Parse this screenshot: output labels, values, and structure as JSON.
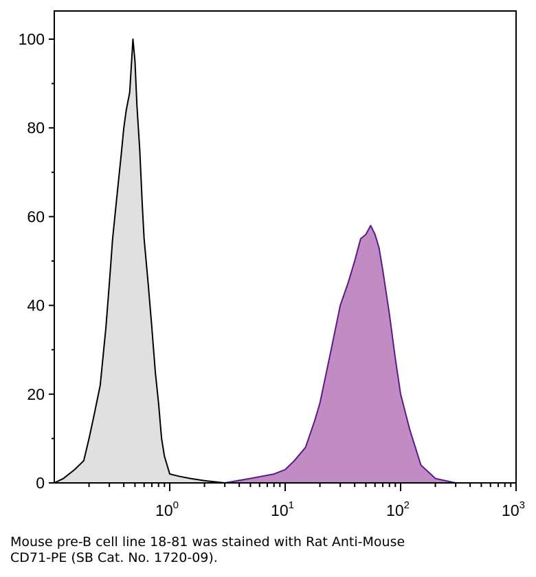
{
  "chart_data": {
    "type": "area",
    "title": "",
    "xlabel": "",
    "ylabel": "",
    "x_scale": "log",
    "xlim": [
      0.1,
      1000
    ],
    "ylim": [
      0,
      105
    ],
    "x_ticks": [
      {
        "base": "10",
        "exp": "0"
      },
      {
        "base": "10",
        "exp": "1"
      },
      {
        "base": "10",
        "exp": "2"
      },
      {
        "base": "10",
        "exp": "3"
      }
    ],
    "y_ticks": [
      "0",
      "20",
      "40",
      "60",
      "80",
      "100"
    ],
    "series": [
      {
        "fill": "#e0e0e0",
        "stroke": "#000000",
        "x": [
          0.1,
          0.12,
          0.15,
          0.18,
          0.2,
          0.22,
          0.25,
          0.28,
          0.3,
          0.32,
          0.35,
          0.38,
          0.4,
          0.42,
          0.45,
          0.48,
          0.5,
          0.52,
          0.55,
          0.58,
          0.6,
          0.65,
          0.7,
          0.75,
          0.8,
          0.85,
          0.9,
          1.0,
          1.2,
          1.5,
          2.0,
          3.0
        ],
        "y": [
          0,
          1,
          3,
          5,
          10,
          15,
          22,
          35,
          45,
          55,
          65,
          74,
          80,
          84,
          88,
          100,
          95,
          85,
          75,
          62,
          55,
          45,
          35,
          25,
          18,
          10,
          6,
          2,
          1.5,
          1,
          0.5,
          0
        ]
      },
      {
        "fill": "#c08cc3",
        "stroke": "#5a1a86",
        "x": [
          3.0,
          5.0,
          8.0,
          10.0,
          12.0,
          15.0,
          18.0,
          20.0,
          25.0,
          30.0,
          35.0,
          40.0,
          45.0,
          50.0,
          55.0,
          60.0,
          65.0,
          70.0,
          80.0,
          90.0,
          100.0,
          120.0,
          150.0,
          200.0,
          300.0
        ],
        "y": [
          0,
          1,
          2,
          3,
          5,
          8,
          14,
          18,
          30,
          40,
          45,
          50,
          55,
          56,
          58,
          56,
          53,
          48,
          38,
          28,
          20,
          12,
          4,
          1,
          0
        ]
      }
    ]
  },
  "caption": {
    "line1": "Mouse pre-B cell line 18-81 was stained with Rat Anti-Mouse",
    "line2": "CD71-PE (SB Cat. No. 1720-09)."
  }
}
